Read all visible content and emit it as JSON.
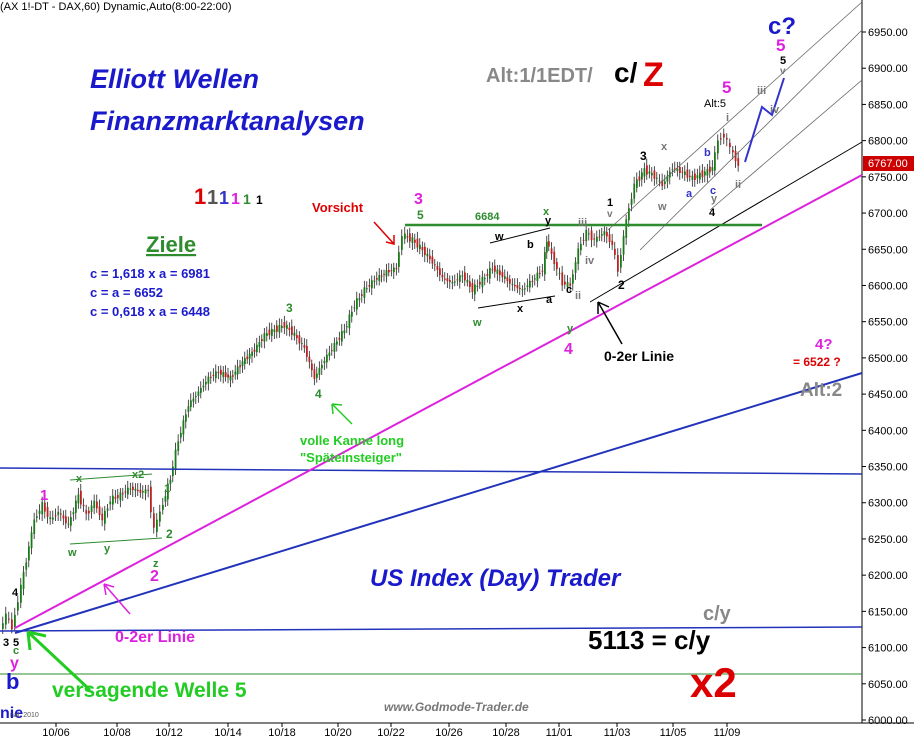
{
  "chart_data": {
    "type": "candlestick",
    "header": "(AX 1!-DT - DAX,60) Dynamic,Auto(8:00-22:00)",
    "x_ticks": [
      "10/06",
      "10/08",
      "10/12",
      "10/14",
      "10/18",
      "10/20",
      "10/22",
      "10/26",
      "10/28",
      "11/01",
      "11/03",
      "11/05",
      "11/09"
    ],
    "y_ticks": [
      "6950.00",
      "6900.00",
      "6850.00",
      "6800.00",
      "6750.00",
      "6700.00",
      "6650.00",
      "6600.00",
      "6550.00",
      "6500.00",
      "6450.00",
      "6400.00",
      "6350.00",
      "6300.00",
      "6250.00",
      "6200.00",
      "6150.00",
      "6100.00",
      "6050.00",
      "6000.00"
    ],
    "ylim": [
      6000,
      6950
    ],
    "last_price": "6767.00",
    "last_price_color": "#cc0000",
    "title_line1": "Elliott Wellen",
    "title_line2": "Finanzmarktanalysen",
    "alt_label": "Alt:1/1EDT/",
    "alt_cz": "c/",
    "alt_z": "Z",
    "ziele_title": "Ziele",
    "ziele": [
      "c = 1,618 x a = 6981",
      "c = a = 6652",
      "c = 0,618 x a = 6448"
    ],
    "degree_digits": [
      {
        "text": "1",
        "color": "#dd0000"
      },
      {
        "text": "1",
        "color": "#555555"
      },
      {
        "text": "1",
        "color": "#3333cc"
      },
      {
        "text": "1",
        "color": "#dd22dd"
      },
      {
        "text": "1",
        "color": "#2e8b2e"
      },
      {
        "text": "1",
        "color": "#000000"
      }
    ],
    "vorsicht": "Vorsicht",
    "level_6684": "6684",
    "volle_kanne_1": "volle Kanne long",
    "volle_kanne_2": "\"Späteinsteiger\"",
    "zero_line_right": "0-2er Linie",
    "zero_line_left": "0-2er Linie",
    "versagende": "versagende Welle 5",
    "us_index": "US Index (Day) Trader",
    "cy_small": "c/y",
    "cy_big": "5113 = c/y",
    "x2": "x2",
    "wave4q": "4?",
    "target_6522": "= 6522 ?",
    "alt2": "Alt:2",
    "alt5": "Alt:5",
    "cq": "c?",
    "footer": "www.Godmode-Trader.de",
    "corner_b": "b",
    "corner_nie": "nie",
    "corner_small": "nal, 2010",
    "wave_labels": [
      {
        "t": "1",
        "c": "#dd22dd"
      },
      {
        "t": "x",
        "c": "#2e8b2e"
      },
      {
        "t": "x2",
        "c": "#2e8b2e"
      },
      {
        "t": "w",
        "c": "#2e8b2e"
      },
      {
        "t": "y",
        "c": "#2e8b2e"
      },
      {
        "t": "1",
        "c": "#2e8b2e"
      },
      {
        "t": "2",
        "c": "#2e8b2e"
      },
      {
        "t": "z",
        "c": "#2e8b2e"
      },
      {
        "t": "2",
        "c": "#dd22dd"
      },
      {
        "t": "4",
        "c": "#000000"
      },
      {
        "t": "3",
        "c": "#000000"
      },
      {
        "t": "5",
        "c": "#000000"
      },
      {
        "t": "c",
        "c": "#2e8b2e"
      },
      {
        "t": "y",
        "c": "#dd22dd"
      },
      {
        "t": "3",
        "c": "#2e8b2e"
      },
      {
        "t": "4",
        "c": "#2e8b2e"
      },
      {
        "t": "3",
        "c": "#dd22dd"
      },
      {
        "t": "5",
        "c": "#2e8b2e"
      },
      {
        "t": "w",
        "c": "#000000"
      },
      {
        "t": "w",
        "c": "#2e8b2e"
      },
      {
        "t": "x",
        "c": "#000000"
      },
      {
        "t": "x",
        "c": "#2e8b2e"
      },
      {
        "t": "y",
        "c": "#000000"
      },
      {
        "t": "b",
        "c": "#000000"
      },
      {
        "t": "a",
        "c": "#000000"
      },
      {
        "t": "c",
        "c": "#000000"
      },
      {
        "t": "y",
        "c": "#2e8b2e"
      },
      {
        "t": "4",
        "c": "#dd22dd"
      },
      {
        "t": "ii",
        "c": "#777777"
      },
      {
        "t": "iii",
        "c": "#777777"
      },
      {
        "t": "iv",
        "c": "#777777"
      },
      {
        "t": "1",
        "c": "#000000"
      },
      {
        "t": "v",
        "c": "#777777"
      },
      {
        "t": "2",
        "c": "#000000"
      },
      {
        "t": "3",
        "c": "#000000"
      },
      {
        "t": "w",
        "c": "#777777"
      },
      {
        "t": "x",
        "c": "#777777"
      },
      {
        "t": "a",
        "c": "#3333cc"
      },
      {
        "t": "b",
        "c": "#3333cc"
      },
      {
        "t": "c",
        "c": "#3333cc"
      },
      {
        "t": "y",
        "c": "#777777"
      },
      {
        "t": "4",
        "c": "#000000"
      },
      {
        "t": "5",
        "c": "#dd22dd"
      },
      {
        "t": "i",
        "c": "#777777"
      },
      {
        "t": "ii",
        "c": "#777777"
      },
      {
        "t": "iii",
        "c": "#777777"
      },
      {
        "t": "iv",
        "c": "#777777"
      },
      {
        "t": "5",
        "c": "#dd22dd"
      },
      {
        "t": "5",
        "c": "#000000"
      },
      {
        "t": "v",
        "c": "#777777"
      }
    ],
    "grid": false
  }
}
